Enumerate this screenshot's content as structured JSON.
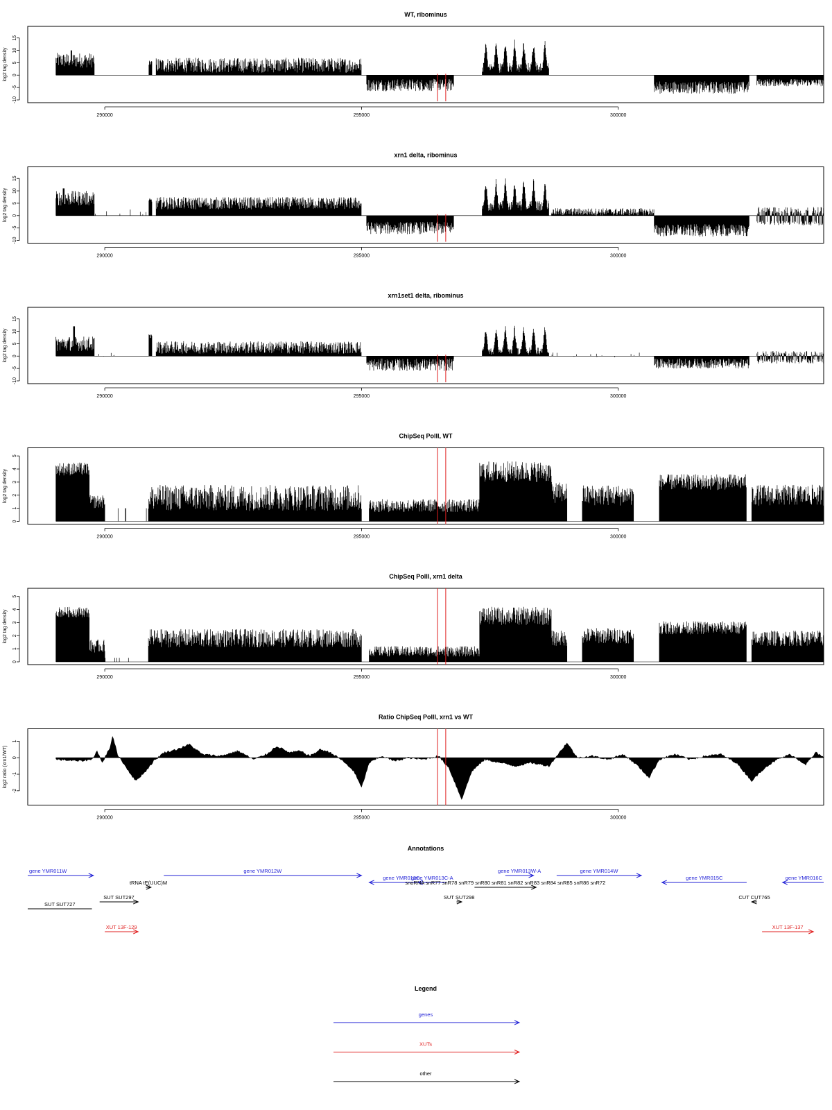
{
  "x_ticks": [
    290000,
    295000,
    300000
  ],
  "x_range": [
    288500,
    304000
  ],
  "colors": {
    "gene": "#1f1fd6",
    "xut": "#e01f1f",
    "other": "#000000",
    "marker": "#e01f1f",
    "signal": "#000000"
  },
  "red_markers": [
    296480,
    296640
  ],
  "chart_data": [
    {
      "type": "bar",
      "title": "WT, ribominus",
      "ylabel": "log2 tag density",
      "ylim": [
        -10,
        18
      ],
      "yticks": [
        -10,
        -5,
        0,
        5,
        10,
        15
      ],
      "x_start": 289050,
      "x_end": 304000,
      "segments": [
        {
          "start": 289050,
          "end": 289800,
          "level": 6,
          "noise": 3,
          "spike_pos": 289350,
          "spike": 10
        },
        {
          "start": 289800,
          "end": 290900,
          "level": 0,
          "noise": 0,
          "sparse": 1
        },
        {
          "start": 290860,
          "end": 290920,
          "level": 5,
          "noise": 1
        },
        {
          "start": 291000,
          "end": 295000,
          "level": 4,
          "noise": 3
        },
        {
          "start": 295100,
          "end": 296800,
          "level": -4,
          "noise": 2.5
        },
        {
          "start": 297350,
          "end": 298650,
          "level": 3,
          "noise": 2,
          "peaks": [
            297420,
            297620,
            297800,
            297980,
            298160,
            298350,
            298570
          ],
          "peak_height": 15
        },
        {
          "start": 298700,
          "end": 300700,
          "level": 0,
          "noise": 0,
          "sparse": 1
        },
        {
          "start": 300700,
          "end": 302550,
          "level": -5,
          "noise": 2.5
        },
        {
          "start": 302700,
          "end": 304000,
          "level": -3,
          "noise": 1.5
        }
      ]
    },
    {
      "type": "bar",
      "title": "xrn1 delta, ribominus",
      "ylabel": "log2 tag density",
      "ylim": [
        -10,
        18
      ],
      "yticks": [
        -10,
        -5,
        0,
        5,
        10,
        15
      ],
      "x_start": 289050,
      "x_end": 304000,
      "segments": [
        {
          "start": 289050,
          "end": 289800,
          "level": 7,
          "noise": 3,
          "spike_pos": 289200,
          "spike": 11
        },
        {
          "start": 289800,
          "end": 290900,
          "level": 1.5,
          "noise": 1,
          "sparse": 1
        },
        {
          "start": 290860,
          "end": 290920,
          "level": 6,
          "noise": 1
        },
        {
          "start": 291000,
          "end": 295000,
          "level": 5,
          "noise": 2.5
        },
        {
          "start": 295100,
          "end": 296800,
          "level": -5,
          "noise": 2.5
        },
        {
          "start": 297350,
          "end": 298650,
          "level": 4,
          "noise": 2,
          "peaks": [
            297420,
            297620,
            297800,
            297980,
            298160,
            298350,
            298570
          ],
          "peak_height": 16
        },
        {
          "start": 298700,
          "end": 300700,
          "level": 1.5,
          "noise": 1.5
        },
        {
          "start": 300700,
          "end": 302550,
          "level": -6,
          "noise": 2.5
        },
        {
          "start": 302700,
          "end": 304000,
          "level": 2,
          "noise": 1.5,
          "negative": -3
        }
      ]
    },
    {
      "type": "bar",
      "title": "xrn1set1 delta, ribominus",
      "ylabel": "log2 tag density",
      "ylim": [
        -10,
        18
      ],
      "yticks": [
        -10,
        -5,
        0,
        5,
        10,
        15
      ],
      "x_start": 289050,
      "x_end": 304000,
      "segments": [
        {
          "start": 289050,
          "end": 289800,
          "level": 5,
          "noise": 3,
          "spike_pos": 289400,
          "spike": 12
        },
        {
          "start": 289800,
          "end": 290900,
          "level": 0.5,
          "noise": 1,
          "sparse": 1
        },
        {
          "start": 290860,
          "end": 290920,
          "level": 8,
          "noise": 1
        },
        {
          "start": 291000,
          "end": 295000,
          "level": 3.5,
          "noise": 2.5
        },
        {
          "start": 295100,
          "end": 296800,
          "level": -3.5,
          "noise": 2.5
        },
        {
          "start": 297350,
          "end": 298650,
          "level": 2,
          "noise": 1.5,
          "peaks": [
            297420,
            297620,
            297800,
            297980,
            298160,
            298350,
            298570
          ],
          "peak_height": 13
        },
        {
          "start": 298700,
          "end": 300700,
          "level": 0.5,
          "noise": 1,
          "sparse": 1
        },
        {
          "start": 300700,
          "end": 302550,
          "level": -3,
          "noise": 2
        },
        {
          "start": 302700,
          "end": 304000,
          "level": 1,
          "noise": 1,
          "negative": -2
        }
      ]
    },
    {
      "type": "bar",
      "title": "ChipSeq PolII, WT",
      "ylabel": "log2 tag density",
      "ylim": [
        0,
        5.3
      ],
      "yticks": [
        0,
        1,
        2,
        3,
        4,
        5
      ],
      "x_start": 289050,
      "x_end": 304000,
      "segments": [
        {
          "start": 289050,
          "end": 289700,
          "level": 4,
          "noise": 0.5
        },
        {
          "start": 289700,
          "end": 290000,
          "level": 1.5,
          "noise": 0.5
        },
        {
          "start": 290000,
          "end": 290850,
          "level": 1,
          "noise": 0,
          "sparse": 1
        },
        {
          "start": 290850,
          "end": 295000,
          "level": 1.8,
          "noise": 1
        },
        {
          "start": 295150,
          "end": 297300,
          "level": 1.2,
          "noise": 0.5
        },
        {
          "start": 297300,
          "end": 298700,
          "level": 3.8,
          "noise": 0.8
        },
        {
          "start": 298700,
          "end": 299000,
          "level": 2.2,
          "noise": 0.8
        },
        {
          "start": 299300,
          "end": 300300,
          "level": 2,
          "noise": 0.8
        },
        {
          "start": 300800,
          "end": 302500,
          "level": 3,
          "noise": 0.6
        },
        {
          "start": 302600,
          "end": 304000,
          "level": 2,
          "noise": 0.8
        }
      ]
    },
    {
      "type": "bar",
      "title": "ChipSeq PolII, xrn1 delta",
      "ylabel": "log2 tag density",
      "ylim": [
        0,
        5.3
      ],
      "yticks": [
        0,
        1,
        2,
        3,
        4,
        5
      ],
      "x_start": 289050,
      "x_end": 304000,
      "segments": [
        {
          "start": 289050,
          "end": 289700,
          "level": 3.8,
          "noise": 0.4
        },
        {
          "start": 289700,
          "end": 290000,
          "level": 1.2,
          "noise": 0.5
        },
        {
          "start": 290000,
          "end": 290850,
          "level": 0.3,
          "noise": 0,
          "sparse": 1
        },
        {
          "start": 290850,
          "end": 295000,
          "level": 1.8,
          "noise": 0.7
        },
        {
          "start": 295150,
          "end": 297300,
          "level": 0.8,
          "noise": 0.4
        },
        {
          "start": 297300,
          "end": 298700,
          "level": 3.5,
          "noise": 0.7
        },
        {
          "start": 298700,
          "end": 299000,
          "level": 1.8,
          "noise": 0.6
        },
        {
          "start": 299300,
          "end": 300300,
          "level": 2,
          "noise": 0.6
        },
        {
          "start": 300800,
          "end": 302500,
          "level": 2.6,
          "noise": 0.5
        },
        {
          "start": 302600,
          "end": 304000,
          "level": 1.8,
          "noise": 0.6
        }
      ]
    },
    {
      "type": "area",
      "title": "Ratio ChipSeq PolII, xrn1 vs WT",
      "ylabel": "log2 ratio (xrn1/WT)",
      "ylim": [
        -2.7,
        1.5
      ],
      "yticks": [
        -2,
        -1,
        0,
        1
      ],
      "x_start": 289050,
      "x_end": 304000,
      "points": [
        [
          289050,
          -0.1
        ],
        [
          289500,
          -0.2
        ],
        [
          289750,
          -0.1
        ],
        [
          289850,
          0.4
        ],
        [
          289950,
          -0.3
        ],
        [
          290100,
          0.6
        ],
        [
          290150,
          1.3
        ],
        [
          290250,
          0.2
        ],
        [
          290400,
          -0.5
        ],
        [
          290600,
          -1.4
        ],
        [
          290800,
          -0.8
        ],
        [
          290950,
          -0.2
        ],
        [
          291150,
          0.3
        ],
        [
          291400,
          0.5
        ],
        [
          291650,
          0.8
        ],
        [
          291900,
          0.2
        ],
        [
          292250,
          0.1
        ],
        [
          292600,
          0.4
        ],
        [
          292900,
          -0.1
        ],
        [
          293150,
          0.2
        ],
        [
          293350,
          0.7
        ],
        [
          293600,
          0.3
        ],
        [
          293800,
          0.4
        ],
        [
          294000,
          0.1
        ],
        [
          294200,
          0.5
        ],
        [
          294400,
          0.3
        ],
        [
          294600,
          -0.1
        ],
        [
          294850,
          -0.8
        ],
        [
          295000,
          -1.8
        ],
        [
          295150,
          -0.3
        ],
        [
          295400,
          0.1
        ],
        [
          295650,
          -0.2
        ],
        [
          295900,
          0.0
        ],
        [
          296200,
          -0.1
        ],
        [
          296500,
          0.1
        ],
        [
          296700,
          -0.6
        ],
        [
          296950,
          -2.5
        ],
        [
          297150,
          -0.8
        ],
        [
          297400,
          -0.1
        ],
        [
          297700,
          -0.3
        ],
        [
          298000,
          -0.5
        ],
        [
          298300,
          -0.3
        ],
        [
          298650,
          -0.5
        ],
        [
          298850,
          0.3
        ],
        [
          299000,
          0.9
        ],
        [
          299200,
          0.0
        ],
        [
          299500,
          0.1
        ],
        [
          299800,
          -0.1
        ],
        [
          300100,
          0.2
        ],
        [
          300350,
          -0.4
        ],
        [
          300600,
          -1.2
        ],
        [
          300800,
          -0.1
        ],
        [
          301100,
          0.2
        ],
        [
          301400,
          -0.1
        ],
        [
          301700,
          0.1
        ],
        [
          302000,
          0.2
        ],
        [
          302300,
          -0.3
        ],
        [
          302600,
          -1.4
        ],
        [
          302850,
          -0.6
        ],
        [
          303100,
          -0.1
        ],
        [
          303350,
          0.2
        ],
        [
          303650,
          -0.4
        ],
        [
          303850,
          0.3
        ],
        [
          304000,
          0.0
        ]
      ]
    }
  ],
  "annotations": {
    "title": "Annotations",
    "items": [
      {
        "label": "gene YMR011W",
        "kind": "gene",
        "start": 288500,
        "end": 289780,
        "dir": "right",
        "row": 0,
        "label_pos": "left"
      },
      {
        "label": "gene YMR012W",
        "kind": "gene",
        "start": 291150,
        "end": 295000,
        "dir": "right",
        "row": 0,
        "label_pos": "center"
      },
      {
        "label": "gene YMR013C",
        "kind": "gene",
        "start": 295150,
        "end": 296400,
        "dir": "left",
        "row": 1,
        "label_pos": "center"
      },
      {
        "label": "gene YMR013C-A",
        "kind": "gene",
        "start": 296100,
        "end": 296650,
        "dir": "left",
        "row": 1,
        "label_pos": "center"
      },
      {
        "label": "gene YMR013W-A",
        "kind": "gene",
        "start": 297800,
        "end": 298350,
        "dir": "right",
        "row": 0,
        "label_pos": "center"
      },
      {
        "label": "gene YMR014W",
        "kind": "gene",
        "start": 298800,
        "end": 300450,
        "dir": "right",
        "row": 0,
        "label_pos": "center"
      },
      {
        "label": "gene YMR015C",
        "kind": "gene",
        "start": 300850,
        "end": 302500,
        "dir": "left",
        "row": 1,
        "label_pos": "center"
      },
      {
        "label": "gene YMR016C",
        "kind": "gene",
        "start": 303200,
        "end": 304500,
        "dir": "left",
        "row": 1,
        "label_pos": "right"
      },
      {
        "label": "tRNA tE(UUC)M",
        "kind": "other",
        "start": 290800,
        "end": 290900,
        "dir": "right",
        "row": 2,
        "label_pos": "center"
      },
      {
        "label": "SUT SUT727",
        "kind": "other",
        "start": 288500,
        "end": 289750,
        "dir": "none",
        "row": 4,
        "label_pos": "center"
      },
      {
        "label": "SUT SUT297",
        "kind": "other",
        "start": 289900,
        "end": 290650,
        "dir": "right",
        "row": 3,
        "label_pos": "center"
      },
      {
        "label": "SUT SUT298",
        "kind": "other",
        "start": 296850,
        "end": 296950,
        "dir": "right",
        "row": 3,
        "label_pos": "center"
      },
      {
        "label": "snoRNA snR77 snR78 snR79 snR80 snR81 snR82 snR83 snR84 snR85 snR86 snR72",
        "kind": "other",
        "start": 297200,
        "end": 298400,
        "dir": "right",
        "row": 2,
        "label_pos": "center"
      },
      {
        "label": "CUT CUT765",
        "kind": "other",
        "start": 302600,
        "end": 302700,
        "dir": "left",
        "row": 3,
        "label_pos": "center"
      },
      {
        "label": "XUT 13F-129",
        "kind": "xut",
        "start": 290000,
        "end": 290650,
        "dir": "right",
        "row": 5,
        "label_pos": "center"
      },
      {
        "label": "XUT 13F-137",
        "kind": "xut",
        "start": 302800,
        "end": 303800,
        "dir": "right",
        "row": 5,
        "label_pos": "center"
      }
    ]
  },
  "legend": {
    "title": "Legend",
    "items": [
      {
        "label": "genes",
        "kind": "gene"
      },
      {
        "label": "XUTs",
        "kind": "xut"
      },
      {
        "label": "other",
        "kind": "other"
      }
    ]
  }
}
